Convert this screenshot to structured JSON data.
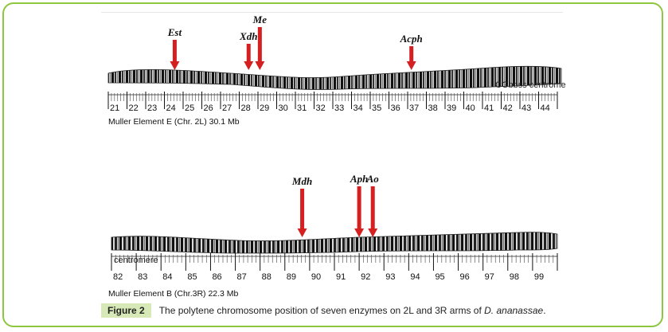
{
  "figure": {
    "label": "Figure 2",
    "caption_text": "The polytene chromosome position of seven enzymes on 2L and 3R arms of",
    "caption_species": "D. ananassae",
    "caption_end": "."
  },
  "map_2L": {
    "element_label": "Muller Element E (Chr. 2L) 30.1 Mb",
    "right_label": "CGbbss centrome",
    "sections": [
      "21",
      "22",
      "23",
      "24",
      "25",
      "26",
      "27",
      "28",
      "29",
      "30",
      "31",
      "32",
      "33",
      "34",
      "35",
      "36",
      "37",
      "38",
      "39",
      "40",
      "41",
      "42",
      "43",
      "44"
    ],
    "genes": [
      {
        "name": "Est",
        "section": "24"
      },
      {
        "name": "Xdh",
        "section": "28"
      },
      {
        "name": "Me",
        "section": "29"
      },
      {
        "name": "Acph",
        "section": "37"
      }
    ]
  },
  "map_3R": {
    "element_label": "Muller Element B (Chr.3R) 22.3 Mb",
    "left_label": "centromere",
    "sections": [
      "82",
      "83",
      "84",
      "85",
      "86",
      "87",
      "88",
      "89",
      "90",
      "91",
      "92",
      "93",
      "94",
      "95",
      "96",
      "97",
      "98",
      "99"
    ],
    "genes": [
      {
        "name": "Mdh",
        "section": "89"
      },
      {
        "name": "Aph",
        "section": "92"
      },
      {
        "name": "Ao",
        "section": "92"
      }
    ]
  },
  "colors": {
    "frame": "#8dc63f",
    "caption_label_bg": "#d6e9b6",
    "arrow": "#d42020"
  }
}
